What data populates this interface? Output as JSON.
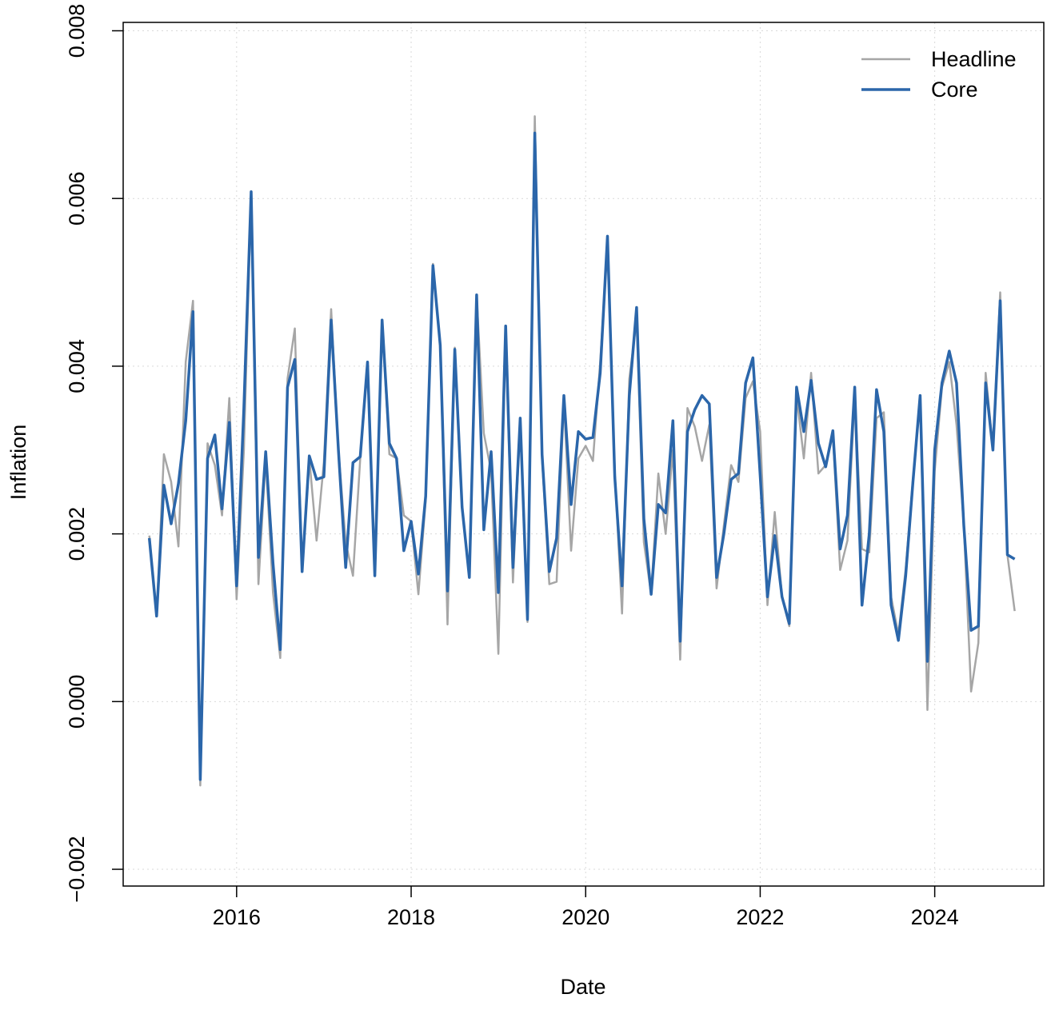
{
  "chart_data": {
    "type": "line",
    "title": "",
    "xlabel": "Date",
    "ylabel": "Inflation",
    "xlim": [
      2014.7,
      2025.25
    ],
    "ylim": [
      -0.0022,
      0.0081
    ],
    "x_ticks": [
      2016,
      2018,
      2020,
      2022,
      2024
    ],
    "x_tick_labels": [
      "2016",
      "2018",
      "2020",
      "2022",
      "2024"
    ],
    "y_ticks": [
      -0.002,
      0.0,
      0.002,
      0.004,
      0.006,
      0.008
    ],
    "y_tick_labels": [
      "−0.002",
      "0.000",
      "0.002",
      "0.004",
      "0.006",
      "0.008"
    ],
    "grid": true,
    "legend_position": "top-right",
    "series": [
      {
        "name": "Headline",
        "color": "#a6a6a6",
        "values": [
          0.00198,
          0.00102,
          0.00295,
          0.00262,
          0.00185,
          0.00405,
          0.00478,
          -0.001,
          0.00308,
          0.00282,
          0.00222,
          0.00362,
          0.00122,
          0.003,
          0.00605,
          0.0014,
          0.0029,
          0.0013,
          0.00052,
          0.00385,
          0.00445,
          0.00155,
          0.0029,
          0.00192,
          0.00285,
          0.00468,
          0.003,
          0.0019,
          0.0015,
          0.0029,
          0.00405,
          0.00152,
          0.00455,
          0.00295,
          0.0029,
          0.00222,
          0.00215,
          0.00128,
          0.0024,
          0.00522,
          0.00425,
          0.00092,
          0.00422,
          0.00232,
          0.0015,
          0.00485,
          0.0032,
          0.00275,
          0.00057,
          0.0044,
          0.00142,
          0.00335,
          0.00095,
          0.00698,
          0.0029,
          0.0014,
          0.00143,
          0.0036,
          0.0018,
          0.0029,
          0.00305,
          0.00287,
          0.00405,
          0.00545,
          0.00275,
          0.00105,
          0.00385,
          0.00455,
          0.0019,
          0.00128,
          0.00272,
          0.002,
          0.003,
          0.0005,
          0.0035,
          0.00328,
          0.00287,
          0.0033,
          0.00135,
          0.0021,
          0.00282,
          0.00262,
          0.00362,
          0.00382,
          0.00322,
          0.00115,
          0.00226,
          0.00125,
          0.0009,
          0.00365,
          0.0029,
          0.00392,
          0.00272,
          0.00282,
          0.00318,
          0.00157,
          0.00192,
          0.00365,
          0.00182,
          0.00178,
          0.00338,
          0.00345,
          0.00125,
          0.0008,
          0.00158,
          0.00265,
          0.0036,
          -0.0001,
          0.00275,
          0.00375,
          0.00405,
          0.0033,
          0.0021,
          0.00012,
          0.0007,
          0.00392,
          0.00302,
          0.00488,
          0.00175,
          0.00108
        ]
      },
      {
        "name": "Core",
        "color": "#2b66aa",
        "values": [
          0.00195,
          0.00102,
          0.00258,
          0.00212,
          0.0026,
          0.00335,
          0.00465,
          -0.00093,
          0.0029,
          0.00318,
          0.0023,
          0.00333,
          0.00138,
          0.0035,
          0.00608,
          0.00172,
          0.00298,
          0.00165,
          0.00062,
          0.00375,
          0.00408,
          0.00155,
          0.00293,
          0.00265,
          0.00268,
          0.00455,
          0.003,
          0.0016,
          0.00285,
          0.00292,
          0.00405,
          0.0015,
          0.00455,
          0.00308,
          0.0029,
          0.0018,
          0.00215,
          0.00152,
          0.00245,
          0.0052,
          0.00425,
          0.00132,
          0.0042,
          0.00232,
          0.00148,
          0.00485,
          0.00205,
          0.00298,
          0.0013,
          0.00448,
          0.0016,
          0.00338,
          0.00098,
          0.00678,
          0.00295,
          0.00155,
          0.00195,
          0.00365,
          0.00235,
          0.00322,
          0.00313,
          0.00315,
          0.00392,
          0.00555,
          0.00268,
          0.00138,
          0.00365,
          0.0047,
          0.00218,
          0.00128,
          0.00235,
          0.00225,
          0.00335,
          0.00072,
          0.00322,
          0.00348,
          0.00365,
          0.00355,
          0.00148,
          0.002,
          0.00265,
          0.00272,
          0.0038,
          0.0041,
          0.0027,
          0.00125,
          0.00198,
          0.00125,
          0.00093,
          0.00375,
          0.00322,
          0.00383,
          0.00308,
          0.0028,
          0.00323,
          0.00182,
          0.00222,
          0.00375,
          0.00115,
          0.002,
          0.00372,
          0.00322,
          0.00115,
          0.00073,
          0.0015,
          0.00262,
          0.00365,
          0.00048,
          0.003,
          0.0038,
          0.00418,
          0.0038,
          0.0021,
          0.00085,
          0.0009,
          0.0038,
          0.003,
          0.00478,
          0.00175,
          0.0017
        ]
      }
    ]
  }
}
